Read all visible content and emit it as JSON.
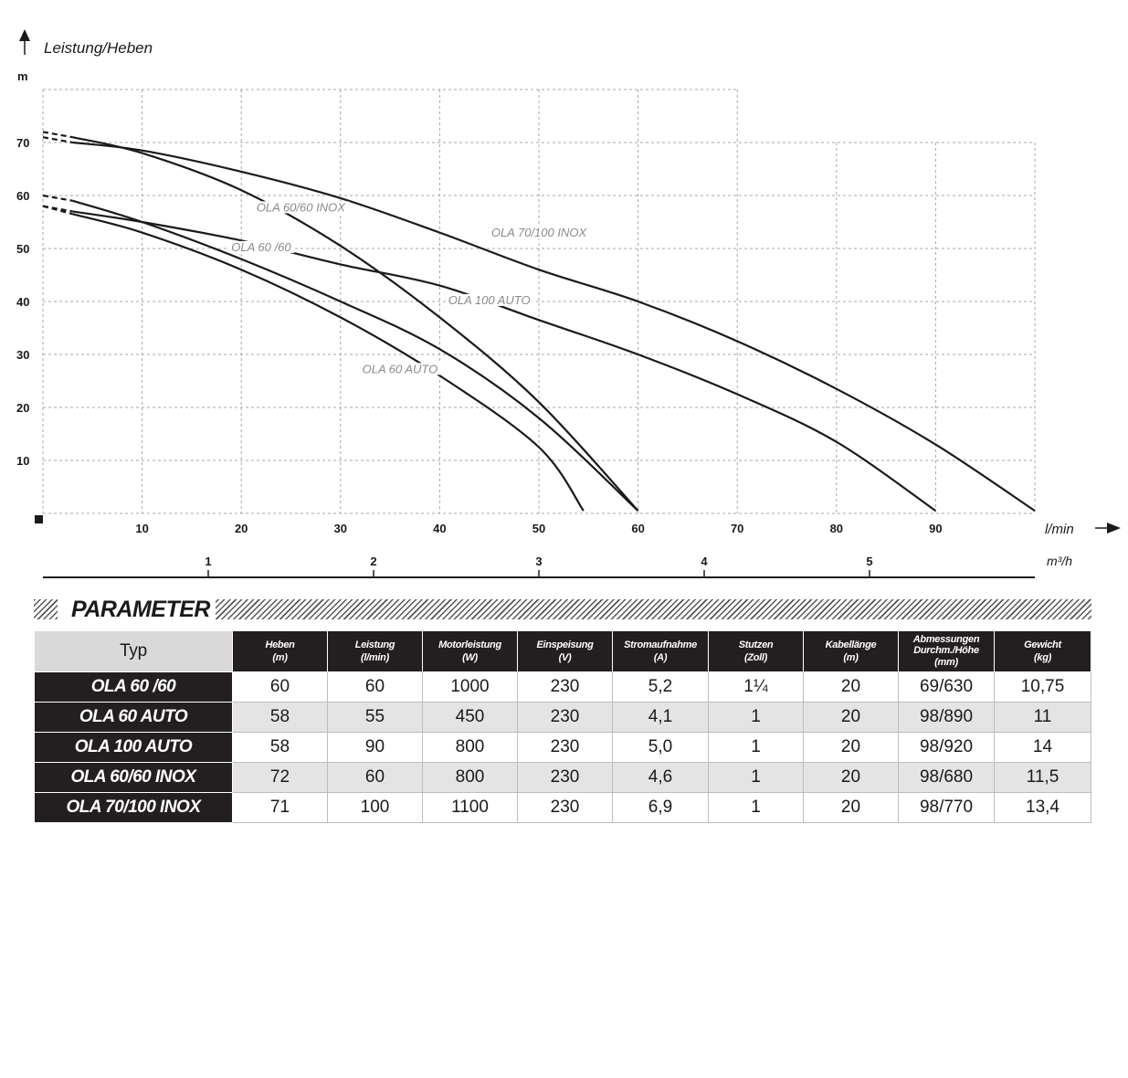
{
  "chart_data": {
    "type": "line",
    "ylabel": "Leistung/Heben",
    "yunit": "m",
    "xunit": "l/min",
    "x2unit": "m³/h",
    "xlim": [
      0,
      100
    ],
    "ylim": [
      0,
      80
    ],
    "grid": true,
    "y_ticks": [
      10,
      20,
      30,
      40,
      50,
      60,
      70
    ],
    "x_ticks": [
      10,
      20,
      30,
      40,
      50,
      60,
      70,
      80,
      90
    ],
    "x2_ticks": [
      1,
      2,
      3,
      4,
      5
    ],
    "series": [
      {
        "name": "OLA 60/60 INOX",
        "label_at": [
          26,
          57
        ],
        "points": [
          [
            3,
            71
          ],
          [
            10,
            68
          ],
          [
            20,
            61
          ],
          [
            30,
            50.5
          ],
          [
            40,
            37
          ],
          [
            50,
            21
          ],
          [
            60,
            0.5
          ]
        ],
        "dashed_from": [
          0,
          72
        ]
      },
      {
        "name": "OLA 70/100 INOX",
        "label_at": [
          50,
          52.2
        ],
        "points": [
          [
            3,
            70
          ],
          [
            10,
            68.5
          ],
          [
            20,
            64.5
          ],
          [
            30,
            59.5
          ],
          [
            40,
            53
          ],
          [
            50,
            46
          ],
          [
            60,
            40
          ],
          [
            70,
            32.5
          ],
          [
            80,
            23.5
          ],
          [
            90,
            13
          ],
          [
            100,
            0.5
          ]
        ],
        "dashed_from": [
          0,
          71
        ]
      },
      {
        "name": "OLA 60 /60",
        "label_at": [
          22,
          49.5
        ],
        "points": [
          [
            3,
            59
          ],
          [
            10,
            55
          ],
          [
            20,
            48
          ],
          [
            30,
            40
          ],
          [
            40,
            31
          ],
          [
            50,
            18
          ],
          [
            60,
            0.5
          ]
        ],
        "dashed_from": [
          0,
          60
        ]
      },
      {
        "name": "OLA 100 AUTO",
        "label_at": [
          45,
          39.5
        ],
        "points": [
          [
            3,
            57
          ],
          [
            10,
            55
          ],
          [
            20,
            51.5
          ],
          [
            30,
            47
          ],
          [
            40,
            43
          ],
          [
            50,
            36.5
          ],
          [
            60,
            30
          ],
          [
            70,
            22.5
          ],
          [
            80,
            13.5
          ],
          [
            90,
            0.5
          ]
        ],
        "dashed_from": [
          0,
          58
        ]
      },
      {
        "name": "OLA 60 AUTO",
        "label_at": [
          36,
          26.5
        ],
        "points": [
          [
            3,
            56.5
          ],
          [
            10,
            53
          ],
          [
            20,
            46
          ],
          [
            30,
            37
          ],
          [
            40,
            26
          ],
          [
            50,
            12.5
          ],
          [
            54.5,
            0.5
          ]
        ],
        "dashed_from": [
          0,
          58
        ]
      }
    ]
  },
  "parameter": {
    "title": "PARAMETER",
    "typ_header": "Typ",
    "columns": [
      {
        "name": "Heben",
        "unit": "(m)"
      },
      {
        "name": "Leistung",
        "unit": "(l/min)"
      },
      {
        "name": "Motorleistung",
        "unit": "(W)"
      },
      {
        "name": "Einspeisung",
        "unit": "(V)"
      },
      {
        "name": "Stromaufnahme",
        "unit": "(A)"
      },
      {
        "name": "Stutzen",
        "unit": "(Zoll)"
      },
      {
        "name": "Kabellänge",
        "unit": "(m)"
      },
      {
        "name": "Abmessungen Durchm./Höhe",
        "unit": "(mm)"
      },
      {
        "name": "Gewicht",
        "unit": "(kg)"
      }
    ],
    "rows": [
      {
        "typ": "OLA 60 /60",
        "values": [
          "60",
          "60",
          "1000",
          "230",
          "5,2",
          "1¼",
          "20",
          "69/630",
          "10,75"
        ]
      },
      {
        "typ": "OLA 60 AUTO",
        "values": [
          "58",
          "55",
          "450",
          "230",
          "4,1",
          "1",
          "20",
          "98/890",
          "11"
        ]
      },
      {
        "typ": "OLA 100 AUTO",
        "values": [
          "58",
          "90",
          "800",
          "230",
          "5,0",
          "1",
          "20",
          "98/920",
          "14"
        ]
      },
      {
        "typ": "OLA 60/60 INOX",
        "values": [
          "72",
          "60",
          "800",
          "230",
          "4,6",
          "1",
          "20",
          "98/680",
          "11,5"
        ]
      },
      {
        "typ": "OLA 70/100 INOX",
        "values": [
          "71",
          "100",
          "1100",
          "230",
          "6,9",
          "1",
          "20",
          "98/770",
          "13,4"
        ]
      }
    ]
  }
}
